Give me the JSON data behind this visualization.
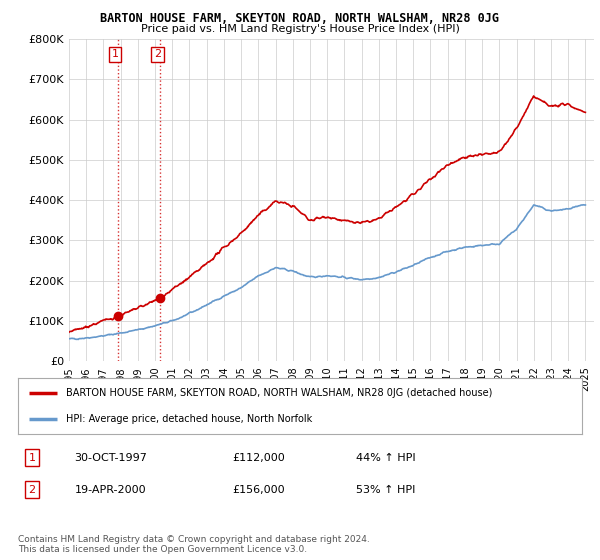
{
  "title": "BARTON HOUSE FARM, SKEYTON ROAD, NORTH WALSHAM, NR28 0JG",
  "subtitle": "Price paid vs. HM Land Registry's House Price Index (HPI)",
  "ylabel_ticks": [
    "£0",
    "£100K",
    "£200K",
    "£300K",
    "£400K",
    "£500K",
    "£600K",
    "£700K",
    "£800K"
  ],
  "ytick_vals": [
    0,
    100000,
    200000,
    300000,
    400000,
    500000,
    600000,
    700000,
    800000
  ],
  "ylim": [
    0,
    800000
  ],
  "xlim_start": 1995.0,
  "xlim_end": 2025.5,
  "xticks": [
    1995,
    1996,
    1997,
    1998,
    1999,
    2000,
    2001,
    2002,
    2003,
    2004,
    2005,
    2006,
    2007,
    2008,
    2009,
    2010,
    2011,
    2012,
    2013,
    2014,
    2015,
    2016,
    2017,
    2018,
    2019,
    2020,
    2021,
    2022,
    2023,
    2024,
    2025
  ],
  "sale1_x": 1997.83,
  "sale1_y": 112000,
  "sale2_x": 2000.3,
  "sale2_y": 156000,
  "legend_line1": "BARTON HOUSE FARM, SKEYTON ROAD, NORTH WALSHAM, NR28 0JG (detached house)",
  "legend_line2": "HPI: Average price, detached house, North Norfolk",
  "table_row1_num": "1",
  "table_row1_date": "30-OCT-1997",
  "table_row1_price": "£112,000",
  "table_row1_hpi": "44% ↑ HPI",
  "table_row2_num": "2",
  "table_row2_date": "19-APR-2000",
  "table_row2_price": "£156,000",
  "table_row2_hpi": "53% ↑ HPI",
  "footnote": "Contains HM Land Registry data © Crown copyright and database right 2024.\nThis data is licensed under the Open Government Licence v3.0.",
  "red_color": "#cc0000",
  "blue_color": "#6699cc",
  "bg_color": "#ffffff",
  "grid_color": "#cccccc",
  "hpi_anchors_x": [
    1995,
    1996,
    1997,
    1998,
    1999,
    2000,
    2001,
    2002,
    2003,
    2004,
    2005,
    2006,
    2007,
    2008,
    2009,
    2010,
    2011,
    2012,
    2013,
    2014,
    2015,
    2016,
    2017,
    2018,
    2019,
    2020,
    2021,
    2022,
    2023,
    2024,
    2025
  ],
  "hpi_anchors_y": [
    55000,
    58000,
    63000,
    70000,
    78000,
    88000,
    100000,
    118000,
    140000,
    162000,
    182000,
    212000,
    232000,
    224000,
    208000,
    213000,
    208000,
    203000,
    208000,
    222000,
    238000,
    258000,
    273000,
    283000,
    288000,
    292000,
    328000,
    388000,
    373000,
    378000,
    388000
  ],
  "red_anchors_x": [
    1995,
    1996,
    1997,
    1997.83,
    1998.5,
    1999,
    2000,
    2000.3,
    2001,
    2002,
    2003,
    2004,
    2005,
    2006,
    2007,
    2008,
    2009,
    2010,
    2011,
    2012,
    2013,
    2014,
    2015,
    2016,
    2017,
    2018,
    2019,
    2020,
    2021,
    2022,
    2023,
    2024,
    2025
  ],
  "red_anchors_y": [
    72000,
    85000,
    100000,
    112000,
    122000,
    132000,
    150000,
    156000,
    178000,
    208000,
    242000,
    282000,
    318000,
    362000,
    398000,
    386000,
    350000,
    360000,
    348000,
    343000,
    353000,
    383000,
    413000,
    453000,
    488000,
    508000,
    513000,
    518000,
    578000,
    658000,
    633000,
    638000,
    618000
  ]
}
